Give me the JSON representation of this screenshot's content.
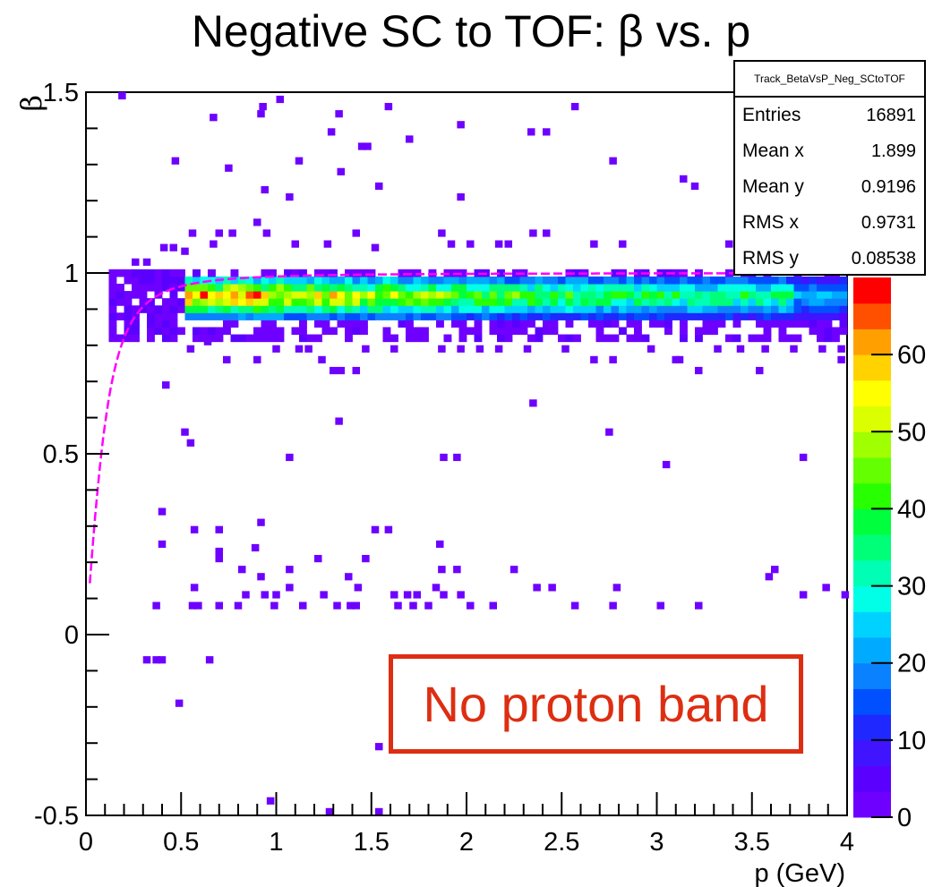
{
  "chart_data": {
    "type": "heatmap",
    "title": "Negative SC to TOF: β vs. p",
    "xlabel": "p (GeV)",
    "ylabel": "β",
    "xlim": [
      0,
      4
    ],
    "ylim": [
      -0.5,
      1.5
    ],
    "x_ticks": [
      "0",
      "0.5",
      "1",
      "1.5",
      "2",
      "2.5",
      "3",
      "3.5",
      "4"
    ],
    "y_ticks": [
      "-0.5",
      "0",
      "0.5",
      "1",
      "1.5"
    ],
    "colorbar": {
      "min": 0,
      "max": 70,
      "ticks": [
        "0",
        "10",
        "20",
        "30",
        "40",
        "50",
        "60"
      ],
      "colors": [
        "#6e00ff",
        "#5a00ff",
        "#4014ff",
        "#1e28ff",
        "#0050ff",
        "#0a82ff",
        "#00aaff",
        "#00d2ff",
        "#00ffe6",
        "#00ffb4",
        "#00ff78",
        "#00ff3c",
        "#28ff00",
        "#64ff00",
        "#a0ff00",
        "#dcff00",
        "#ffff00",
        "#ffd200",
        "#ffa000",
        "#ff5000",
        "#ff0000"
      ]
    },
    "band": {
      "p_range": [
        0.5,
        4.0
      ],
      "beta_range": [
        0.87,
        0.98
      ],
      "peak_p": 0.8,
      "peak_counts": 70
    },
    "scatter_counts_1": [
      [
        0.17,
        1.48
      ],
      [
        0.45,
        1.3
      ],
      [
        0.44,
        1.06
      ],
      [
        0.65,
        1.42
      ],
      [
        0.91,
        1.45
      ],
      [
        0.9,
        1.43
      ],
      [
        1.0,
        1.47
      ],
      [
        1.27,
        1.38
      ],
      [
        1.31,
        1.43
      ],
      [
        1.57,
        1.45
      ],
      [
        1.68,
        1.36
      ],
      [
        1.43,
        1.34
      ],
      [
        1.46,
        1.34
      ],
      [
        1.1,
        1.3
      ],
      [
        1.32,
        1.27
      ],
      [
        1.52,
        1.23
      ],
      [
        0.73,
        1.28
      ],
      [
        0.92,
        1.22
      ],
      [
        1.05,
        1.2
      ],
      [
        0.88,
        1.13
      ],
      [
        0.93,
        1.1
      ],
      [
        1.08,
        1.07
      ],
      [
        1.25,
        1.07
      ],
      [
        1.4,
        1.1
      ],
      [
        1.5,
        1.06
      ],
      [
        1.95,
        1.2
      ],
      [
        1.95,
        1.4
      ],
      [
        2.4,
        1.38
      ],
      [
        2.32,
        1.38
      ],
      [
        2.55,
        1.45
      ],
      [
        2.75,
        1.3
      ],
      [
        3.12,
        1.25
      ],
      [
        3.18,
        1.23
      ],
      [
        3.36,
        1.07
      ],
      [
        2.33,
        1.1
      ],
      [
        2.4,
        1.1
      ],
      [
        1.85,
        1.1
      ],
      [
        1.9,
        1.07
      ],
      [
        2.0,
        1.07
      ],
      [
        2.15,
        1.07
      ],
      [
        2.2,
        1.07
      ],
      [
        2.65,
        1.07
      ],
      [
        2.8,
        1.07
      ],
      [
        0.65,
        1.07
      ],
      [
        0.68,
        1.1
      ],
      [
        0.75,
        1.1
      ],
      [
        0.54,
        1.1
      ],
      [
        0.39,
        1.06
      ],
      [
        0.24,
        1.02
      ],
      [
        0.3,
        1.02
      ],
      [
        0.5,
        1.05
      ],
      [
        0.4,
        0.68
      ],
      [
        0.5,
        0.55
      ],
      [
        0.53,
        0.52
      ],
      [
        0.53,
        0.78
      ],
      [
        0.62,
        0.8
      ],
      [
        0.72,
        0.75
      ],
      [
        0.88,
        0.75
      ],
      [
        0.98,
        0.78
      ],
      [
        1.1,
        0.78
      ],
      [
        1.22,
        0.75
      ],
      [
        1.28,
        0.72
      ],
      [
        1.32,
        0.72
      ],
      [
        1.4,
        0.72
      ],
      [
        1.31,
        0.58
      ],
      [
        1.15,
        0.78
      ],
      [
        1.45,
        0.78
      ],
      [
        1.6,
        0.78
      ],
      [
        1.85,
        0.78
      ],
      [
        1.95,
        0.78
      ],
      [
        2.05,
        0.78
      ],
      [
        2.15,
        0.78
      ],
      [
        2.3,
        0.78
      ],
      [
        2.5,
        0.78
      ],
      [
        2.65,
        0.75
      ],
      [
        2.75,
        0.75
      ],
      [
        2.95,
        0.78
      ],
      [
        3.1,
        0.75
      ],
      [
        3.3,
        0.78
      ],
      [
        3.42,
        0.78
      ],
      [
        3.55,
        0.78
      ],
      [
        3.7,
        0.78
      ],
      [
        3.85,
        0.78
      ],
      [
        3.95,
        0.78
      ],
      [
        3.08,
        0.75
      ],
      [
        3.2,
        0.72
      ],
      [
        3.52,
        0.72
      ],
      [
        3.95,
        0.75
      ],
      [
        2.33,
        0.63
      ],
      [
        2.73,
        0.55
      ],
      [
        3.03,
        0.46
      ],
      [
        3.75,
        0.48
      ],
      [
        1.86,
        0.48
      ],
      [
        1.93,
        0.48
      ],
      [
        1.05,
        0.48
      ],
      [
        0.38,
        0.33
      ],
      [
        0.55,
        0.28
      ],
      [
        0.68,
        0.28
      ],
      [
        0.9,
        0.3
      ],
      [
        1.5,
        0.28
      ],
      [
        1.57,
        0.28
      ],
      [
        1.84,
        0.24
      ],
      [
        0.38,
        0.24
      ],
      [
        0.68,
        0.22
      ],
      [
        0.87,
        0.23
      ],
      [
        0.68,
        0.2
      ],
      [
        1.2,
        0.2
      ],
      [
        1.45,
        0.2
      ],
      [
        0.8,
        0.17
      ],
      [
        0.9,
        0.15
      ],
      [
        1.05,
        0.17
      ],
      [
        1.36,
        0.15
      ],
      [
        1.85,
        0.17
      ],
      [
        1.93,
        0.17
      ],
      [
        2.23,
        0.17
      ],
      [
        3.6,
        0.17
      ],
      [
        3.57,
        0.15
      ],
      [
        0.55,
        0.12
      ],
      [
        0.82,
        0.1
      ],
      [
        0.92,
        0.1
      ],
      [
        0.98,
        0.1
      ],
      [
        1.05,
        0.12
      ],
      [
        1.23,
        0.1
      ],
      [
        1.41,
        0.12
      ],
      [
        1.6,
        0.1
      ],
      [
        1.67,
        0.1
      ],
      [
        1.72,
        0.1
      ],
      [
        1.82,
        0.12
      ],
      [
        1.86,
        0.1
      ],
      [
        1.95,
        0.1
      ],
      [
        2.35,
        0.12
      ],
      [
        2.43,
        0.12
      ],
      [
        2.77,
        0.12
      ],
      [
        3.75,
        0.1
      ],
      [
        3.87,
        0.12
      ],
      [
        3.97,
        0.1
      ],
      [
        0.35,
        0.07
      ],
      [
        0.54,
        0.07
      ],
      [
        0.57,
        0.07
      ],
      [
        0.68,
        0.07
      ],
      [
        0.78,
        0.07
      ],
      [
        0.97,
        0.07
      ],
      [
        1.12,
        0.07
      ],
      [
        1.3,
        0.07
      ],
      [
        1.37,
        0.07
      ],
      [
        1.4,
        0.07
      ],
      [
        1.62,
        0.07
      ],
      [
        1.7,
        0.07
      ],
      [
        1.78,
        0.07
      ],
      [
        2.0,
        0.07
      ],
      [
        2.12,
        0.07
      ],
      [
        2.55,
        0.07
      ],
      [
        2.75,
        0.07
      ],
      [
        3.0,
        0.07
      ],
      [
        3.2,
        0.07
      ],
      [
        0.3,
        -0.08
      ],
      [
        0.35,
        -0.08
      ],
      [
        0.38,
        -0.08
      ],
      [
        0.63,
        -0.08
      ],
      [
        0.47,
        -0.2
      ],
      [
        1.52,
        -0.32
      ],
      [
        0.95,
        -0.47
      ],
      [
        1.26,
        -0.5
      ],
      [
        1.52,
        -0.5
      ]
    ]
  },
  "stats": {
    "name": "Track_BetaVsP_Neg_SCtoTOF",
    "rows": [
      {
        "label": "Entries",
        "value": "16891"
      },
      {
        "label": "Mean x",
        "value": "1.899"
      },
      {
        "label": "Mean y",
        "value": "0.9196"
      },
      {
        "label": "RMS x",
        "value": "0.9731"
      },
      {
        "label": "RMS y",
        "value": "0.08538"
      }
    ]
  },
  "annotation": {
    "text": "No proton band",
    "color": "#dd2e12"
  },
  "colors": {
    "fit_curve": "#ff00ff",
    "axis": "#000000"
  }
}
